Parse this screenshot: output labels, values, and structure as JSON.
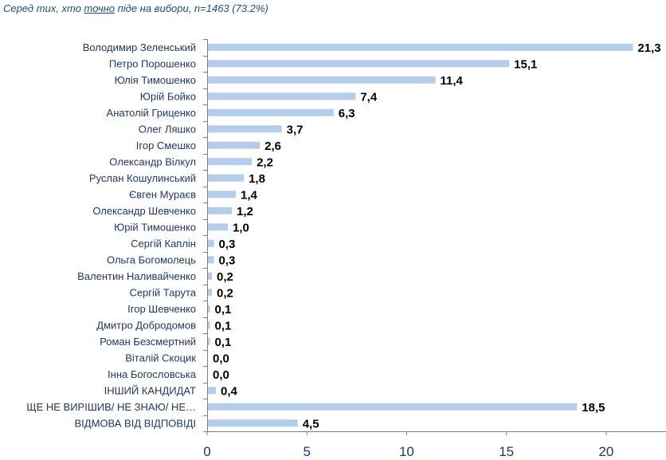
{
  "subtitle": {
    "before": "Серед тих, хто ",
    "emphasis": "точно",
    "after": " піде на вибори, n=1463 (73.2%)"
  },
  "chart_data": {
    "type": "bar",
    "orientation": "horizontal",
    "categories": [
      "Володимир Зеленський",
      "Петро Порошенко",
      "Юлія Тимошенко",
      "Юрій Бойко",
      "Анатолій Гриценко",
      "Олег Ляшко",
      "Ігор Смешко",
      "Олександр Вілкул",
      "Руслан Кошулинський",
      "Євген Мураєв",
      "Олександр Шевченко",
      "Юрій Тимошенко",
      "Сергій Каплін",
      "Ольга Богомолець",
      "Валентин Наливайченко",
      "Сергій Тарута",
      "Ігор Шевченко",
      "Дмитро Добродомов",
      "Роман Безсмертний",
      "Віталій Скоцик",
      "Інна Богословська",
      "ІНШИЙ КАНДИДАТ",
      "ЩЕ НЕ ВИРІШИВ/ НЕ ЗНАЮ/ НЕ…",
      "ВІДМОВА ВІД ВІДПОВІДІ"
    ],
    "values": [
      21.3,
      15.1,
      11.4,
      7.4,
      6.3,
      3.7,
      2.6,
      2.2,
      1.8,
      1.4,
      1.2,
      1.0,
      0.3,
      0.3,
      0.2,
      0.2,
      0.1,
      0.1,
      0.1,
      0.0,
      0.0,
      0.4,
      18.5,
      4.5
    ],
    "value_labels": [
      "21,3",
      "15,1",
      "11,4",
      "7,4",
      "6,3",
      "3,7",
      "2,6",
      "2,2",
      "1,8",
      "1,4",
      "1,2",
      "1,0",
      "0,3",
      "0,3",
      "0,2",
      "0,2",
      "0,1",
      "0,1",
      "0,1",
      "0,0",
      "0,0",
      "0,4",
      "18,5",
      "4,5"
    ],
    "xlim": [
      0,
      23
    ],
    "xticks": [
      0,
      5,
      10,
      15,
      20
    ],
    "bar_color": "#b4cdea",
    "axis_color": "#7f7f7f",
    "grid": false,
    "title": "",
    "xlabel": "",
    "ylabel": ""
  }
}
